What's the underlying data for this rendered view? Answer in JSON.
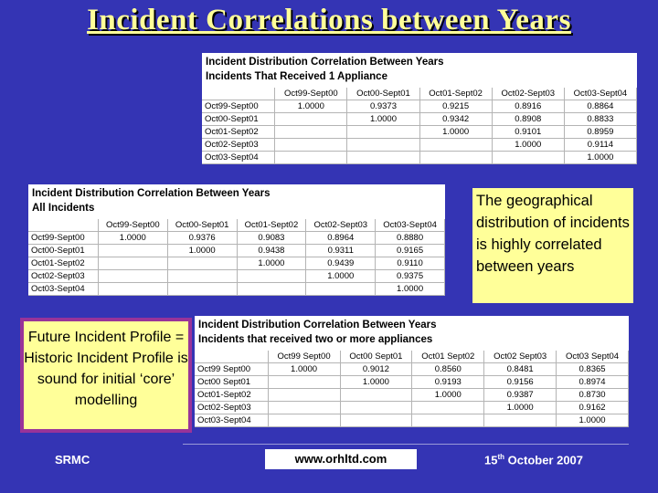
{
  "title": "Incident Correlations between Years",
  "tables": [
    {
      "heading": [
        "Incident Distribution Correlation Between Years",
        "Incidents That Received 1 Appliance"
      ],
      "columns": [
        "Oct99-Sept00",
        "Oct00-Sept01",
        "Oct01-Sept02",
        "Oct02-Sept03",
        "Oct03-Sept04"
      ],
      "rows": [
        {
          "label": "Oct99-Sept00",
          "values": [
            "1.0000",
            "0.9373",
            "0.9215",
            "0.8916",
            "0.8864"
          ]
        },
        {
          "label": "Oct00-Sept01",
          "values": [
            "",
            "1.0000",
            "0.9342",
            "0.8908",
            "0.8833"
          ]
        },
        {
          "label": "Oct01-Sept02",
          "values": [
            "",
            "",
            "1.0000",
            "0.9101",
            "0.8959"
          ]
        },
        {
          "label": "Oct02-Sept03",
          "values": [
            "",
            "",
            "",
            "1.0000",
            "0.9114"
          ]
        },
        {
          "label": "Oct03-Sept04",
          "values": [
            "",
            "",
            "",
            "",
            "1.0000"
          ]
        }
      ]
    },
    {
      "heading": [
        "Incident Distribution Correlation Between Years",
        "All Incidents"
      ],
      "columns": [
        "Oct99-Sept00",
        "Oct00-Sept01",
        "Oct01-Sept02",
        "Oct02-Sept03",
        "Oct03-Sept04"
      ],
      "rows": [
        {
          "label": "Oct99-Sept00",
          "values": [
            "1.0000",
            "0.9376",
            "0.9083",
            "0.8964",
            "0.8880"
          ]
        },
        {
          "label": "Oct00-Sept01",
          "values": [
            "",
            "1.0000",
            "0.9438",
            "0.9311",
            "0.9165"
          ]
        },
        {
          "label": "Oct01-Sept02",
          "values": [
            "",
            "",
            "1.0000",
            "0.9439",
            "0.9110"
          ]
        },
        {
          "label": "Oct02-Sept03",
          "values": [
            "",
            "",
            "",
            "1.0000",
            "0.9375"
          ]
        },
        {
          "label": "Oct03-Sept04",
          "values": [
            "",
            "",
            "",
            "",
            "1.0000"
          ]
        }
      ]
    },
    {
      "heading": [
        "Incident Distribution Correlation Between Years",
        "Incidents that received two or more appliances"
      ],
      "columns": [
        "Oct99 Sept00",
        "Oct00 Sept01",
        "Oct01 Sept02",
        "Oct02 Sept03",
        "Oct03 Sept04"
      ],
      "rows": [
        {
          "label": "Oct99 Sept00",
          "values": [
            "1.0000",
            "0.9012",
            "0.8560",
            "0.8481",
            "0.8365"
          ]
        },
        {
          "label": "Oct00 Sept01",
          "values": [
            "",
            "1.0000",
            "0.9193",
            "0.9156",
            "0.8974"
          ]
        },
        {
          "label": "Oct01-Sept02",
          "values": [
            "",
            "",
            "1.0000",
            "0.9387",
            "0.8730"
          ]
        },
        {
          "label": "Oct02-Sept03",
          "values": [
            "",
            "",
            "",
            "1.0000",
            "0.9162"
          ]
        },
        {
          "label": "Oct03-Sept04",
          "values": [
            "",
            "",
            "",
            "",
            "1.0000"
          ]
        }
      ]
    }
  ],
  "note_right": "The geographical distribution of incidents is highly correlated between years",
  "note_left": "Future Incident Profile = Historic Incident Profile is sound for initial ‘core’ modelling",
  "footer": {
    "left": "SRMC",
    "middle": "www.orhltd.com",
    "right_day": "15",
    "right_suffix": "th",
    "right_rest": " October 2007"
  },
  "colors": {
    "background": "#3434b4",
    "title": "#ffff99",
    "note": "#ffff99",
    "note_border": "#993399"
  }
}
